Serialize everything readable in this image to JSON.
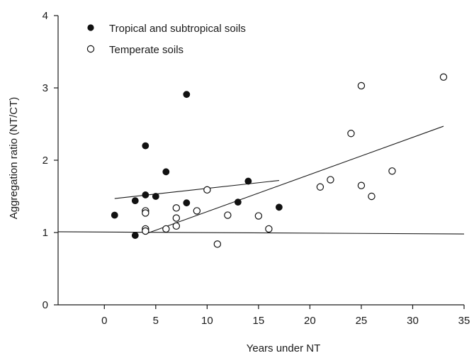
{
  "chart_data": {
    "type": "scatter",
    "xlabel": "Years under NT",
    "ylabel": "Aggregation ratio (NT/CT)",
    "xlim": [
      -4.5,
      35
    ],
    "ylim": [
      0,
      4
    ],
    "xticks": [
      0,
      5,
      10,
      15,
      20,
      25,
      30,
      35
    ],
    "yticks": [
      0,
      1,
      2,
      3,
      4
    ],
    "grid": false,
    "legend": "top-left",
    "series": [
      {
        "name": "Tropical and subtropical soils",
        "marker": "filled-circle",
        "color": "#111111",
        "points": [
          {
            "x": 1,
            "y": 1.24
          },
          {
            "x": 3,
            "y": 0.96
          },
          {
            "x": 3,
            "y": 1.44
          },
          {
            "x": 4,
            "y": 2.2
          },
          {
            "x": 4,
            "y": 1.52
          },
          {
            "x": 5,
            "y": 1.5
          },
          {
            "x": 6,
            "y": 1.84
          },
          {
            "x": 8,
            "y": 2.91
          },
          {
            "x": 8,
            "y": 1.41
          },
          {
            "x": 13,
            "y": 1.42
          },
          {
            "x": 14,
            "y": 1.71
          },
          {
            "x": 17,
            "y": 1.35
          }
        ],
        "trend": [
          {
            "x": 1,
            "y": 1.47
          },
          {
            "x": 17,
            "y": 1.72
          }
        ]
      },
      {
        "name": "Temperate soils",
        "marker": "open-circle",
        "color": "#111111",
        "points": [
          {
            "x": 4,
            "y": 1.3
          },
          {
            "x": 4,
            "y": 1.27
          },
          {
            "x": 4,
            "y": 1.05
          },
          {
            "x": 4,
            "y": 1.02
          },
          {
            "x": 6,
            "y": 1.05
          },
          {
            "x": 7,
            "y": 1.34
          },
          {
            "x": 7,
            "y": 1.2
          },
          {
            "x": 7,
            "y": 1.09
          },
          {
            "x": 9,
            "y": 1.3
          },
          {
            "x": 10,
            "y": 1.59
          },
          {
            "x": 11,
            "y": 0.84
          },
          {
            "x": 12,
            "y": 1.24
          },
          {
            "x": 15,
            "y": 1.23
          },
          {
            "x": 16,
            "y": 1.05
          },
          {
            "x": 21,
            "y": 1.63
          },
          {
            "x": 22,
            "y": 1.73
          },
          {
            "x": 24,
            "y": 2.37
          },
          {
            "x": 25,
            "y": 3.03
          },
          {
            "x": 25,
            "y": 1.65
          },
          {
            "x": 26,
            "y": 1.5
          },
          {
            "x": 28,
            "y": 1.85
          },
          {
            "x": 33,
            "y": 3.15
          }
        ],
        "trend": [
          {
            "x": 4,
            "y": 0.98
          },
          {
            "x": 33,
            "y": 2.47
          }
        ]
      }
    ],
    "reference_line": {
      "x": [
        -4.5,
        35
      ],
      "y": [
        1.01,
        0.98
      ]
    }
  }
}
